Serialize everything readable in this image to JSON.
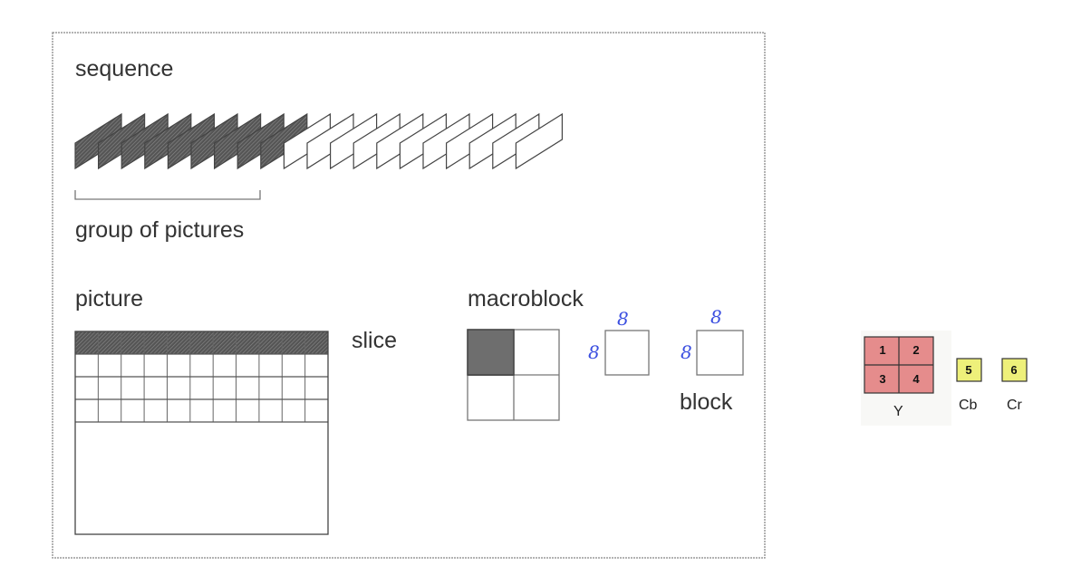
{
  "labels": {
    "sequence": "sequence",
    "group_of_pictures": "group of pictures",
    "picture": "picture",
    "slice": "slice",
    "macroblock": "macroblock",
    "block": "block"
  },
  "block_dims": {
    "block1_top": "8",
    "block1_left": "8",
    "block2_top": "8",
    "block2_left": "8"
  },
  "sequence_frames": {
    "total": 20,
    "shaded": 9
  },
  "picture_grid": {
    "columns": 11,
    "rows": 4,
    "shaded_rows": 1
  },
  "yuv": {
    "y_blocks": [
      "1",
      "2",
      "3",
      "4"
    ],
    "cb_block": "5",
    "cr_block": "6",
    "y_label": "Y",
    "cb_label": "Cb",
    "cr_label": "Cr",
    "y_color": "#e58c8c",
    "chroma_color": "#eef07a"
  },
  "colors": {
    "shaded": "#6e6e6e",
    "stroke": "#444444",
    "frame_border": "#9a9a9a"
  }
}
